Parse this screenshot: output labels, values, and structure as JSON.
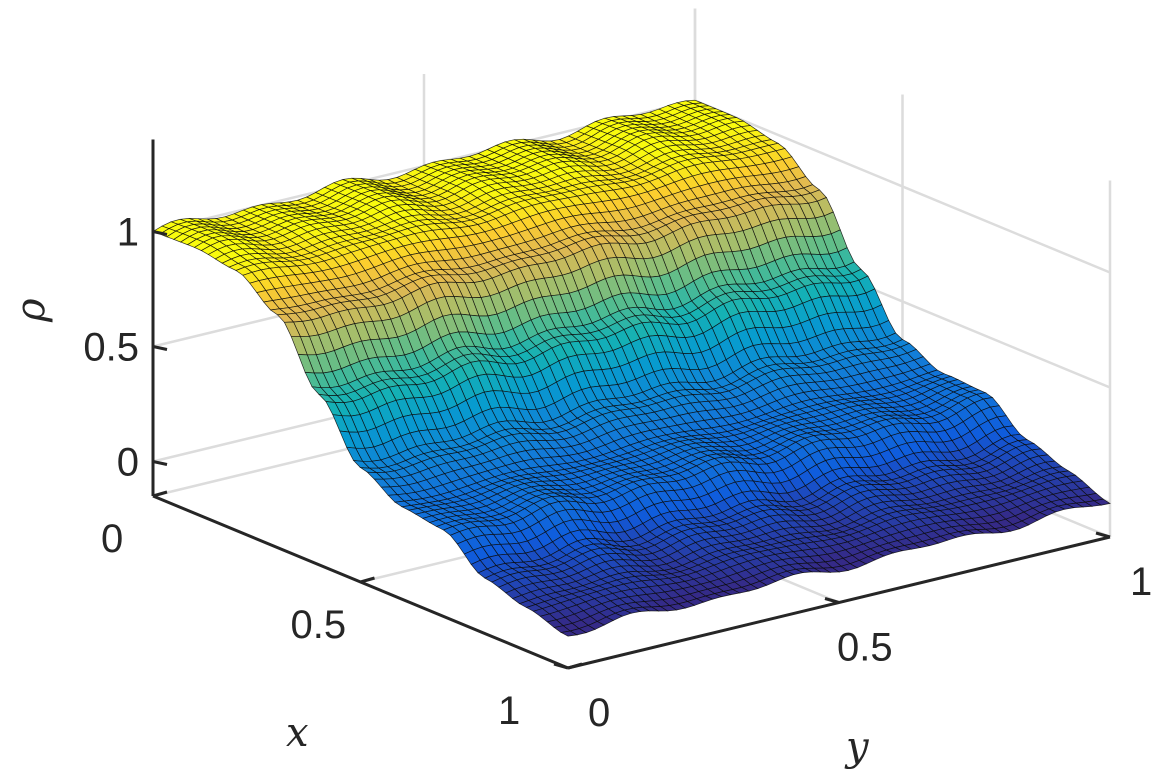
{
  "chart_data": {
    "type": "surface",
    "title": "",
    "xlabel": "x",
    "ylabel": "y",
    "zlabel": "ρ",
    "xlim": [
      0,
      1
    ],
    "ylim": [
      0,
      1
    ],
    "zlim": [
      -0.15,
      1.4
    ],
    "x_ticks": [
      0,
      0.5,
      1
    ],
    "y_ticks": [
      0,
      0.5,
      1
    ],
    "z_ticks": [
      0,
      0.5,
      1
    ],
    "x_tick_labels": [
      "0",
      "0.5",
      "1"
    ],
    "y_tick_labels": [
      "0",
      "0.5",
      "1"
    ],
    "z_tick_labels": [
      "0",
      "0.5",
      "1"
    ],
    "grid": true,
    "colormap": "parula",
    "mesh": true,
    "x": [
      0,
      0.1,
      0.2,
      0.3,
      0.4,
      0.5,
      0.6,
      0.7,
      0.8,
      0.9,
      1
    ],
    "rho_profile_vs_x": [
      1.0,
      1.0,
      0.97,
      0.85,
      0.58,
      0.34,
      0.25,
      0.23,
      0.1,
      0.05,
      0.0
    ],
    "rho_profile_note_free": true,
    "y_variation": "nearly constant along y with small ripples"
  }
}
